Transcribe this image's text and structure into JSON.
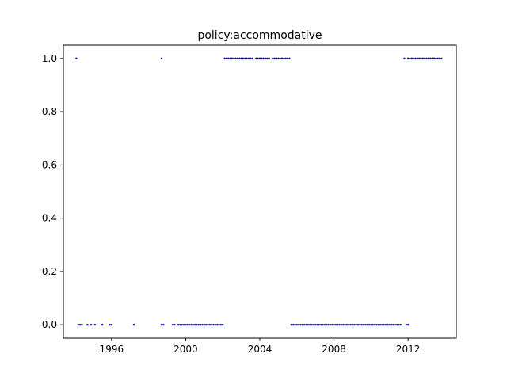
{
  "chart_data": {
    "type": "scatter",
    "title": "policy:accommodative",
    "xlabel": "",
    "ylabel": "",
    "xlim": [
      1993.4,
      2014.6
    ],
    "ylim": [
      -0.05,
      1.05
    ],
    "grid": false,
    "marker_color": "#0000cc",
    "x_ticks": [
      1996,
      2000,
      2004,
      2008,
      2012
    ],
    "x_tick_labels": [
      "1996",
      "2000",
      "2004",
      "2008",
      "2012"
    ],
    "y_ticks": [
      0.0,
      0.2,
      0.4,
      0.6,
      0.8,
      1.0
    ],
    "y_tick_labels": [
      "0.0",
      "0.2",
      "0.4",
      "0.6",
      "0.8",
      "1.0"
    ],
    "series": [
      {
        "value": 1,
        "x": [
          1994.1,
          1998.7,
          2002.1,
          2002.2,
          2002.3,
          2002.4,
          2002.5,
          2002.6,
          2002.7,
          2002.8,
          2002.9,
          2003.0,
          2003.1,
          2003.2,
          2003.3,
          2003.4,
          2003.5,
          2003.6,
          2003.8,
          2003.9,
          2004.0,
          2004.1,
          2004.2,
          2004.3,
          2004.4,
          2004.5,
          2004.7,
          2004.8,
          2004.9,
          2005.0,
          2005.1,
          2005.2,
          2005.3,
          2005.4,
          2005.5,
          2005.6,
          2011.8,
          2012.0,
          2012.1,
          2012.2,
          2012.3,
          2012.4,
          2012.5,
          2012.6,
          2012.7,
          2012.8,
          2012.9,
          2013.0,
          2013.1,
          2013.2,
          2013.3,
          2013.4,
          2013.5,
          2013.6,
          2013.7,
          2013.8
        ]
      },
      {
        "value": 0,
        "x": [
          1994.2,
          1994.3,
          1994.4,
          1994.7,
          1994.9,
          1995.1,
          1995.5,
          1995.9,
          1996.0,
          1997.2,
          1998.7,
          1998.8,
          1999.3,
          1999.4,
          1999.6,
          1999.7,
          1999.8,
          1999.9,
          2000.0,
          2000.1,
          2000.2,
          2000.3,
          2000.4,
          2000.5,
          2000.6,
          2000.7,
          2000.8,
          2000.9,
          2001.0,
          2001.1,
          2001.2,
          2001.3,
          2001.4,
          2001.5,
          2001.6,
          2001.7,
          2001.8,
          2001.9,
          2002.0,
          2005.7,
          2005.8,
          2005.9,
          2006.0,
          2006.1,
          2006.2,
          2006.3,
          2006.4,
          2006.5,
          2006.6,
          2006.7,
          2006.8,
          2006.9,
          2007.0,
          2007.1,
          2007.2,
          2007.3,
          2007.4,
          2007.5,
          2007.6,
          2007.7,
          2007.8,
          2007.9,
          2008.0,
          2008.1,
          2008.2,
          2008.3,
          2008.4,
          2008.5,
          2008.6,
          2008.7,
          2008.8,
          2008.9,
          2009.0,
          2009.1,
          2009.2,
          2009.3,
          2009.4,
          2009.5,
          2009.6,
          2009.7,
          2009.8,
          2009.9,
          2010.0,
          2010.1,
          2010.2,
          2010.3,
          2010.4,
          2010.5,
          2010.6,
          2010.7,
          2010.8,
          2010.9,
          2011.0,
          2011.1,
          2011.2,
          2011.3,
          2011.4,
          2011.5,
          2011.6,
          2011.9,
          2012.0
        ]
      }
    ]
  }
}
